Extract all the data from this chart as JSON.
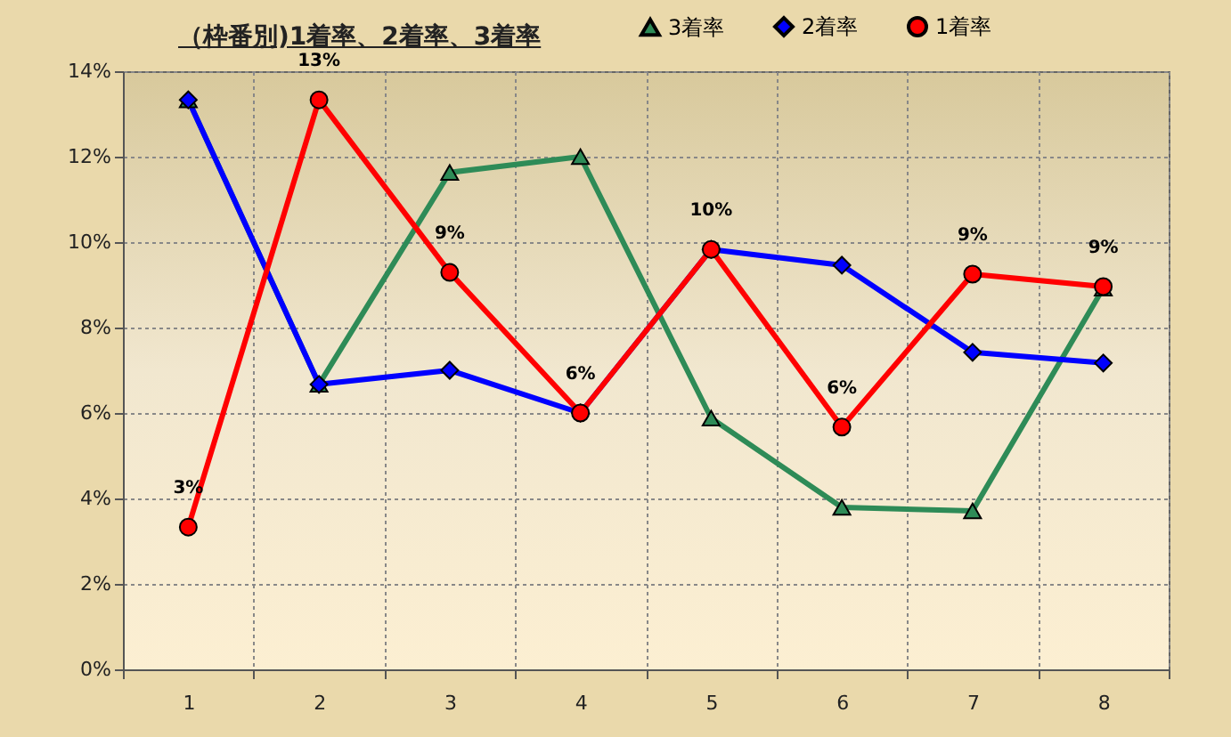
{
  "chart_data": {
    "type": "line",
    "title": "（枠番別)1着率、2着率、3着率",
    "categories": [
      "1",
      "2",
      "3",
      "4",
      "5",
      "6",
      "7",
      "8"
    ],
    "series": [
      {
        "name": "3着率",
        "color": "#2e8b57",
        "marker": "triangle",
        "values": [
          13.33,
          6.67,
          11.63,
          12.0,
          5.88,
          3.79,
          3.71,
          8.92
        ]
      },
      {
        "name": "2着率",
        "color": "#0000ff",
        "marker": "diamond",
        "values": [
          13.33,
          6.67,
          7.0,
          6.0,
          9.83,
          9.46,
          7.42,
          7.17
        ]
      },
      {
        "name": "1着率",
        "color": "#ff0000",
        "marker": "circle",
        "values": [
          3.33,
          13.33,
          9.29,
          6.0,
          9.83,
          5.67,
          9.25,
          8.96
        ],
        "value_labels": [
          "3%",
          "13%",
          "9%",
          "6%",
          "10%",
          "6%",
          "9%",
          "9%"
        ]
      }
    ],
    "ylim": [
      0,
      14
    ],
    "yticks": [
      {
        "value": 0,
        "label": "0%"
      },
      {
        "value": 2,
        "label": "2%"
      },
      {
        "value": 4,
        "label": "4%"
      },
      {
        "value": 6,
        "label": "6%"
      },
      {
        "value": 8,
        "label": "8%"
      },
      {
        "value": 10,
        "label": "10%"
      },
      {
        "value": 12,
        "label": "12%"
      },
      {
        "value": 14,
        "label": "14%"
      }
    ],
    "grid": true,
    "legend": "top right"
  }
}
